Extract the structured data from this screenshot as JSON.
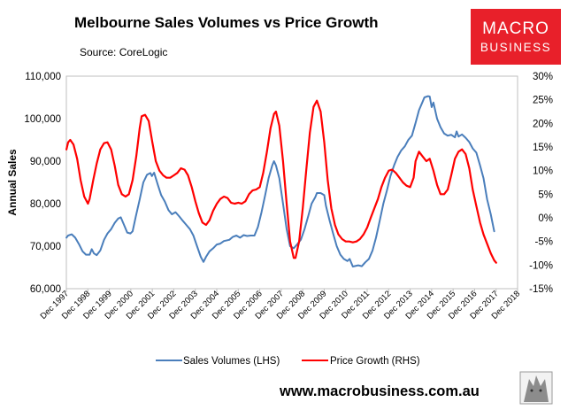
{
  "chart_data": {
    "type": "line",
    "title": "Melbourne Sales Volumes vs Price Growth",
    "source": "Source: CoreLogic",
    "ylabel": "Annual Sales",
    "xlabel": "",
    "left_axis": {
      "ylim": [
        60000,
        110000
      ],
      "ticks": [
        "60,000",
        "70,000",
        "80,000",
        "90,000",
        "100,000",
        "110,000"
      ],
      "tick_values": [
        60000,
        70000,
        80000,
        90000,
        100000,
        110000
      ]
    },
    "right_axis": {
      "ylim": [
        -15,
        30
      ],
      "ticks": [
        "-15%",
        "-10%",
        "-5%",
        "0%",
        "5%",
        "10%",
        "15%",
        "20%",
        "25%",
        "30%"
      ],
      "tick_values": [
        -15,
        -10,
        -5,
        0,
        5,
        10,
        15,
        20,
        25,
        30
      ]
    },
    "x_range": [
      1997.917,
      2018.917
    ],
    "x_ticks": [
      "Dec 1997",
      "Dec 1998",
      "Dec 1999",
      "Dec 2000",
      "Dec 2001",
      "Dec 2002",
      "Dec 2003",
      "Dec 2004",
      "Dec 2005",
      "Dec 2006",
      "Dec 2007",
      "Dec 2008",
      "Dec 2009",
      "Dec 2010",
      "Dec 2011",
      "Dec 2012",
      "Dec 2013",
      "Dec 2014",
      "Dec 2015",
      "Dec 2016",
      "Dec 2017",
      "Dec 2018"
    ],
    "series": [
      {
        "name": "Sales Volumes (LHS)",
        "axis": "left",
        "color": "#4a7ebb",
        "points": [
          [
            1997.92,
            72000
          ],
          [
            1998.0,
            72500
          ],
          [
            1998.17,
            72800
          ],
          [
            1998.33,
            72000
          ],
          [
            1998.5,
            70500
          ],
          [
            1998.67,
            68800
          ],
          [
            1998.83,
            68000
          ],
          [
            1999.0,
            68000
          ],
          [
            1999.1,
            69300
          ],
          [
            1999.2,
            68300
          ],
          [
            1999.33,
            67900
          ],
          [
            1999.5,
            69000
          ],
          [
            1999.67,
            71500
          ],
          [
            1999.83,
            73000
          ],
          [
            2000.0,
            74000
          ],
          [
            2000.17,
            75500
          ],
          [
            2000.33,
            76500
          ],
          [
            2000.45,
            76800
          ],
          [
            2000.6,
            75000
          ],
          [
            2000.75,
            73200
          ],
          [
            2000.9,
            73000
          ],
          [
            2001.0,
            73500
          ],
          [
            2001.15,
            77000
          ],
          [
            2001.33,
            81000
          ],
          [
            2001.5,
            85000
          ],
          [
            2001.67,
            86800
          ],
          [
            2001.83,
            87200
          ],
          [
            2001.9,
            86500
          ],
          [
            2002.0,
            87300
          ],
          [
            2002.17,
            84500
          ],
          [
            2002.33,
            82000
          ],
          [
            2002.5,
            80500
          ],
          [
            2002.67,
            78500
          ],
          [
            2002.83,
            77500
          ],
          [
            2003.0,
            78000
          ],
          [
            2003.17,
            77000
          ],
          [
            2003.33,
            76000
          ],
          [
            2003.5,
            75000
          ],
          [
            2003.67,
            74000
          ],
          [
            2003.83,
            72500
          ],
          [
            2004.0,
            70000
          ],
          [
            2004.17,
            67500
          ],
          [
            2004.3,
            66300
          ],
          [
            2004.42,
            67500
          ],
          [
            2004.58,
            68800
          ],
          [
            2004.75,
            69500
          ],
          [
            2004.92,
            70400
          ],
          [
            2005.08,
            70600
          ],
          [
            2005.25,
            71200
          ],
          [
            2005.5,
            71500
          ],
          [
            2005.67,
            72200
          ],
          [
            2005.83,
            72500
          ],
          [
            2006.0,
            72000
          ],
          [
            2006.17,
            72600
          ],
          [
            2006.33,
            72400
          ],
          [
            2006.5,
            72500
          ],
          [
            2006.67,
            72500
          ],
          [
            2006.83,
            74500
          ],
          [
            2007.0,
            78000
          ],
          [
            2007.17,
            82000
          ],
          [
            2007.33,
            86000
          ],
          [
            2007.5,
            89000
          ],
          [
            2007.58,
            90000
          ],
          [
            2007.67,
            89000
          ],
          [
            2007.83,
            86000
          ],
          [
            2008.0,
            80000
          ],
          [
            2008.17,
            74000
          ],
          [
            2008.33,
            70000
          ],
          [
            2008.5,
            69500
          ],
          [
            2008.67,
            70500
          ],
          [
            2008.83,
            71500
          ],
          [
            2009.0,
            74000
          ],
          [
            2009.17,
            77000
          ],
          [
            2009.33,
            80000
          ],
          [
            2009.5,
            81500
          ],
          [
            2009.58,
            82500
          ],
          [
            2009.75,
            82500
          ],
          [
            2009.92,
            82000
          ],
          [
            2010.0,
            79500
          ],
          [
            2010.17,
            76000
          ],
          [
            2010.33,
            73000
          ],
          [
            2010.5,
            70000
          ],
          [
            2010.67,
            68000
          ],
          [
            2010.83,
            67000
          ],
          [
            2011.0,
            66500
          ],
          [
            2011.1,
            67000
          ],
          [
            2011.25,
            65200
          ],
          [
            2011.5,
            65500
          ],
          [
            2011.67,
            65300
          ],
          [
            2011.83,
            66200
          ],
          [
            2012.0,
            67000
          ],
          [
            2012.17,
            69000
          ],
          [
            2012.33,
            72000
          ],
          [
            2012.5,
            76000
          ],
          [
            2012.67,
            80000
          ],
          [
            2012.83,
            83000
          ],
          [
            2013.0,
            86500
          ],
          [
            2013.17,
            89000
          ],
          [
            2013.33,
            91000
          ],
          [
            2013.5,
            92500
          ],
          [
            2013.67,
            93500
          ],
          [
            2013.83,
            95000
          ],
          [
            2014.0,
            96000
          ],
          [
            2014.17,
            99000
          ],
          [
            2014.33,
            102000
          ],
          [
            2014.5,
            104000
          ],
          [
            2014.58,
            105000
          ],
          [
            2014.75,
            105300
          ],
          [
            2014.83,
            105200
          ],
          [
            2014.92,
            102700
          ],
          [
            2015.0,
            103800
          ],
          [
            2015.17,
            100000
          ],
          [
            2015.33,
            98000
          ],
          [
            2015.5,
            96500
          ],
          [
            2015.67,
            96000
          ],
          [
            2015.83,
            96200
          ],
          [
            2016.0,
            95600
          ],
          [
            2016.08,
            97000
          ],
          [
            2016.17,
            95800
          ],
          [
            2016.33,
            96300
          ],
          [
            2016.5,
            95500
          ],
          [
            2016.67,
            94500
          ],
          [
            2016.83,
            93000
          ],
          [
            2017.0,
            92000
          ],
          [
            2017.17,
            89000
          ],
          [
            2017.33,
            86000
          ],
          [
            2017.5,
            81000
          ],
          [
            2017.67,
            77500
          ],
          [
            2017.83,
            73500
          ]
        ]
      },
      {
        "name": "Price Growth (RHS)",
        "axis": "right",
        "color": "#ff0000",
        "points": [
          [
            1997.92,
            14.5
          ],
          [
            1998.0,
            16.0
          ],
          [
            1998.1,
            16.5
          ],
          [
            1998.25,
            15.5
          ],
          [
            1998.42,
            12.5
          ],
          [
            1998.58,
            8.0
          ],
          [
            1998.75,
            4.5
          ],
          [
            1998.92,
            3.0
          ],
          [
            1999.0,
            4.0
          ],
          [
            1999.17,
            8.0
          ],
          [
            1999.33,
            11.5
          ],
          [
            1999.5,
            14.5
          ],
          [
            1999.67,
            15.8
          ],
          [
            1999.83,
            16.0
          ],
          [
            2000.0,
            14.5
          ],
          [
            2000.17,
            11.0
          ],
          [
            2000.33,
            7.0
          ],
          [
            2000.5,
            5.0
          ],
          [
            2000.67,
            4.5
          ],
          [
            2000.83,
            5.0
          ],
          [
            2001.0,
            8.0
          ],
          [
            2001.17,
            13.0
          ],
          [
            2001.33,
            19.0
          ],
          [
            2001.42,
            21.5
          ],
          [
            2001.58,
            21.8
          ],
          [
            2001.75,
            20.5
          ],
          [
            2001.92,
            16.0
          ],
          [
            2002.08,
            12.0
          ],
          [
            2002.25,
            10.0
          ],
          [
            2002.42,
            9.0
          ],
          [
            2002.58,
            8.5
          ],
          [
            2002.75,
            8.5
          ],
          [
            2002.92,
            9.0
          ],
          [
            2003.08,
            9.5
          ],
          [
            2003.25,
            10.5
          ],
          [
            2003.42,
            10.2
          ],
          [
            2003.58,
            9.0
          ],
          [
            2003.75,
            6.5
          ],
          [
            2003.92,
            3.5
          ],
          [
            2004.08,
            1.0
          ],
          [
            2004.25,
            -1.0
          ],
          [
            2004.42,
            -1.5
          ],
          [
            2004.58,
            -0.5
          ],
          [
            2004.75,
            1.5
          ],
          [
            2004.92,
            3.0
          ],
          [
            2005.08,
            4.0
          ],
          [
            2005.25,
            4.5
          ],
          [
            2005.42,
            4.2
          ],
          [
            2005.58,
            3.2
          ],
          [
            2005.75,
            3.0
          ],
          [
            2005.92,
            3.2
          ],
          [
            2006.08,
            3.0
          ],
          [
            2006.25,
            3.5
          ],
          [
            2006.42,
            5.0
          ],
          [
            2006.58,
            5.8
          ],
          [
            2006.75,
            6.0
          ],
          [
            2006.92,
            6.5
          ],
          [
            2007.08,
            9.5
          ],
          [
            2007.25,
            14.0
          ],
          [
            2007.42,
            19.0
          ],
          [
            2007.58,
            22.0
          ],
          [
            2007.67,
            22.5
          ],
          [
            2007.83,
            19.5
          ],
          [
            2008.0,
            12.0
          ],
          [
            2008.17,
            3.0
          ],
          [
            2008.33,
            -5.0
          ],
          [
            2008.5,
            -8.5
          ],
          [
            2008.58,
            -8.5
          ],
          [
            2008.75,
            -5.0
          ],
          [
            2008.92,
            2.0
          ],
          [
            2009.08,
            10.0
          ],
          [
            2009.25,
            18.0
          ],
          [
            2009.42,
            23.5
          ],
          [
            2009.58,
            24.8
          ],
          [
            2009.75,
            22.5
          ],
          [
            2009.92,
            16.0
          ],
          [
            2010.08,
            8.0
          ],
          [
            2010.25,
            2.0
          ],
          [
            2010.42,
            -1.5
          ],
          [
            2010.58,
            -3.5
          ],
          [
            2010.75,
            -4.5
          ],
          [
            2010.92,
            -5.0
          ],
          [
            2011.08,
            -5.0
          ],
          [
            2011.25,
            -5.2
          ],
          [
            2011.42,
            -5.0
          ],
          [
            2011.58,
            -4.5
          ],
          [
            2011.75,
            -3.5
          ],
          [
            2011.92,
            -2.0
          ],
          [
            2012.08,
            0.0
          ],
          [
            2012.25,
            2.0
          ],
          [
            2012.42,
            4.0
          ],
          [
            2012.58,
            6.5
          ],
          [
            2012.75,
            8.5
          ],
          [
            2012.92,
            10.0
          ],
          [
            2013.08,
            10.2
          ],
          [
            2013.25,
            9.5
          ],
          [
            2013.42,
            8.5
          ],
          [
            2013.58,
            7.5
          ],
          [
            2013.75,
            6.8
          ],
          [
            2013.92,
            6.5
          ],
          [
            2014.08,
            8.5
          ],
          [
            2014.17,
            12.0
          ],
          [
            2014.33,
            14.0
          ],
          [
            2014.5,
            13.0
          ],
          [
            2014.67,
            12.0
          ],
          [
            2014.83,
            12.5
          ],
          [
            2015.0,
            10.0
          ],
          [
            2015.17,
            7.0
          ],
          [
            2015.33,
            5.0
          ],
          [
            2015.5,
            5.0
          ],
          [
            2015.67,
            6.0
          ],
          [
            2015.83,
            9.0
          ],
          [
            2016.0,
            12.5
          ],
          [
            2016.17,
            14.0
          ],
          [
            2016.33,
            14.5
          ],
          [
            2016.5,
            13.5
          ],
          [
            2016.67,
            10.5
          ],
          [
            2016.83,
            6.0
          ],
          [
            2017.0,
            2.5
          ],
          [
            2017.17,
            -1.0
          ],
          [
            2017.33,
            -3.5
          ],
          [
            2017.5,
            -5.5
          ],
          [
            2017.67,
            -7.5
          ],
          [
            2017.83,
            -9.0
          ],
          [
            2017.92,
            -9.5
          ]
        ]
      }
    ],
    "legend": {
      "placement": "bottom-center",
      "items": [
        "Sales Volumes (LHS)",
        "Price Growth (RHS)"
      ]
    }
  },
  "branding": {
    "logo_line1": "MACRO",
    "logo_line2": "BUSINESS",
    "logo_color": "#e8202a",
    "website": "www.macrobusiness.com.au"
  }
}
